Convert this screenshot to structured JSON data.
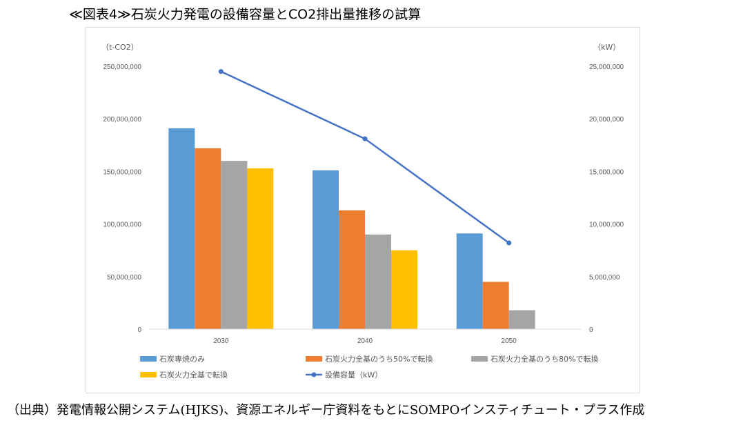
{
  "title": "≪図表4≫石炭火力発電の設備容量とCO2排出量推移の試算",
  "source": "（出典）発電情報公開システム(HJKS)、資源エネルギー庁資料をもとにSOMPOインスティチュート・プラス作成",
  "chart_data": {
    "type": "bar",
    "categories": [
      "2030",
      "2040",
      "2050"
    ],
    "y_left": {
      "unit": "（t-CO2）",
      "ylim": [
        0,
        250000000
      ],
      "ticks": [
        "0",
        "50,000,000",
        "100,000,000",
        "150,000,000",
        "200,000,000",
        "250,000,000"
      ]
    },
    "y_right": {
      "unit": "（kW）",
      "ylim": [
        0,
        25000000
      ],
      "ticks": [
        "0",
        "5,000,000",
        "10,000,000",
        "15,000,000",
        "20,000,000",
        "25,000,000"
      ]
    },
    "series": [
      {
        "name": "石炭専焼のみ",
        "type": "bar",
        "axis": "left",
        "color": "#5b9bd5",
        "values": [
          191000000,
          151000000,
          91000000
        ]
      },
      {
        "name": "石炭火力全基のうち50%で転換",
        "type": "bar",
        "axis": "left",
        "color": "#ed7d31",
        "values": [
          172000000,
          113000000,
          45000000
        ]
      },
      {
        "name": "石炭火力全基のうち80%で転換",
        "type": "bar",
        "axis": "left",
        "color": "#a5a5a5",
        "values": [
          160000000,
          90000000,
          18000000
        ]
      },
      {
        "name": "石炭火力全基で転換",
        "type": "bar",
        "axis": "left",
        "color": "#ffc000",
        "values": [
          153000000,
          75000000,
          0
        ]
      },
      {
        "name": "設備容量（kW）",
        "type": "line",
        "axis": "right",
        "color": "#4472c4",
        "values": [
          24500000,
          18100000,
          8200000
        ]
      }
    ],
    "grid": false,
    "legend": "bottom"
  }
}
